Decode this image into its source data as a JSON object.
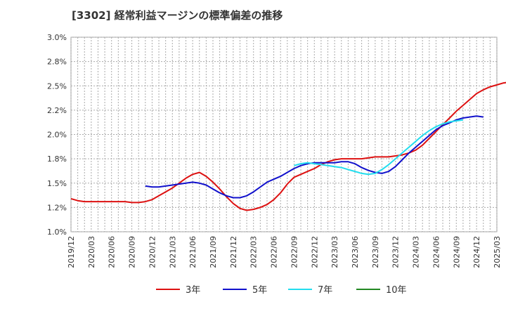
{
  "chart_data": {
    "type": "line",
    "title": "[3302]  経常利益マージンの標準偏差の推移",
    "xlabel": "",
    "ylabel": "",
    "ylim": [
      1.0,
      3.0
    ],
    "yticks": [
      "3.0%",
      "2.8%",
      "2.5%",
      "2.2%",
      "2.0%",
      "1.8%",
      "1.5%",
      "1.2%",
      "1.0%"
    ],
    "xticks": [
      "2019/12",
      "2020/03",
      "2020/06",
      "2020/09",
      "2020/12",
      "2021/03",
      "2021/06",
      "2021/09",
      "2021/12",
      "2022/03",
      "2022/06",
      "2022/09",
      "2022/12",
      "2023/03",
      "2023/06",
      "2023/09",
      "2023/12",
      "2024/03",
      "2024/06",
      "2024/09",
      "2024/12",
      "2025/03"
    ],
    "grid": true,
    "legend_position": "bottom",
    "x_start": "2019/12",
    "series": [
      {
        "name": "3年",
        "color": "#dd1111",
        "start": "2019/12",
        "values": [
          1.34,
          1.32,
          1.31,
          1.31,
          1.31,
          1.31,
          1.31,
          1.31,
          1.31,
          1.3,
          1.3,
          1.31,
          1.33,
          1.37,
          1.41,
          1.45,
          1.5,
          1.55,
          1.59,
          1.61,
          1.57,
          1.51,
          1.44,
          1.36,
          1.29,
          1.24,
          1.22,
          1.23,
          1.25,
          1.28,
          1.33,
          1.4,
          1.49,
          1.56,
          1.59,
          1.62,
          1.65,
          1.69,
          1.72,
          1.74,
          1.75,
          1.75,
          1.75,
          1.75,
          1.76,
          1.77,
          1.77,
          1.77,
          1.78,
          1.79,
          1.81,
          1.84,
          1.89,
          1.96,
          2.03,
          2.1,
          2.17,
          2.24,
          2.3,
          2.36,
          2.42,
          2.46,
          2.49,
          2.51,
          2.53,
          2.54,
          2.54
        ]
      },
      {
        "name": "5年",
        "color": "#1111cc",
        "start": "2020/11",
        "values": [
          1.47,
          1.46,
          1.46,
          1.47,
          1.48,
          1.49,
          1.5,
          1.51,
          1.5,
          1.48,
          1.44,
          1.4,
          1.37,
          1.35,
          1.35,
          1.37,
          1.41,
          1.46,
          1.51,
          1.54,
          1.57,
          1.61,
          1.65,
          1.68,
          1.7,
          1.71,
          1.71,
          1.71,
          1.71,
          1.72,
          1.72,
          1.7,
          1.66,
          1.63,
          1.61,
          1.6,
          1.62,
          1.67,
          1.74,
          1.81,
          1.87,
          1.93,
          1.99,
          2.05,
          2.09,
          2.12,
          2.15,
          2.17,
          2.18,
          2.19,
          2.18
        ]
      },
      {
        "name": "7年",
        "color": "#22ddee",
        "start": "2022/09",
        "values": [
          1.68,
          1.7,
          1.71,
          1.7,
          1.69,
          1.68,
          1.67,
          1.66,
          1.64,
          1.62,
          1.6,
          1.59,
          1.6,
          1.64,
          1.69,
          1.75,
          1.81,
          1.87,
          1.93,
          1.99,
          2.04,
          2.08,
          2.11,
          2.13,
          2.14,
          2.15
        ]
      },
      {
        "name": "10年",
        "color": "#228822",
        "start": "",
        "values": []
      }
    ]
  }
}
